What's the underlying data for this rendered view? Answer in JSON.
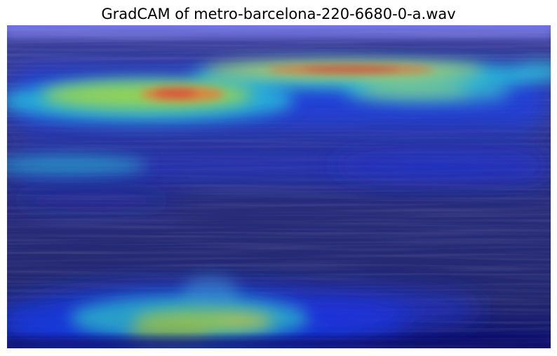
{
  "figure": {
    "title": "GradCAM of metro-barcelona-220-6680-0-a.wav",
    "colormap": "jet",
    "background_color": "#ffffff",
    "heatmap_base_color": "#262a7a"
  }
}
